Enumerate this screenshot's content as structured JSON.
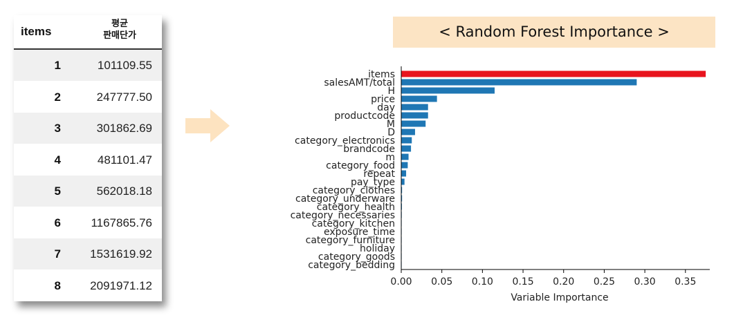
{
  "table": {
    "header_items": "items",
    "header_price_line1": "평균",
    "header_price_line2": "판매단가",
    "rows": [
      {
        "idx": "1",
        "value": "101109.55"
      },
      {
        "idx": "2",
        "value": "247777.50"
      },
      {
        "idx": "3",
        "value": "301862.69"
      },
      {
        "idx": "4",
        "value": "481101.47"
      },
      {
        "idx": "5",
        "value": "562018.18"
      },
      {
        "idx": "6",
        "value": "1167865.76"
      },
      {
        "idx": "7",
        "value": "1531619.92"
      },
      {
        "idx": "8",
        "value": "2091971.12"
      }
    ]
  },
  "banner": {
    "title": "< Random Forest Importance >"
  },
  "colors": {
    "arrow": "#fde3c0",
    "banner_bg": "#fce4c4",
    "bar": "#1f77b4",
    "highlight_bar": "#e8141e"
  },
  "chart_data": {
    "type": "bar",
    "orientation": "horizontal",
    "xlabel": "Variable Importance",
    "xlim": [
      0,
      0.38
    ],
    "xticks": [
      "0.00",
      "0.05",
      "0.10",
      "0.15",
      "0.20",
      "0.25",
      "0.30",
      "0.35"
    ],
    "xtick_values": [
      0,
      0.05,
      0.1,
      0.15,
      0.2,
      0.25,
      0.3,
      0.35
    ],
    "categories": [
      "items",
      "salesAMT/total",
      "H",
      "price",
      "day",
      "productcode",
      "M",
      "D",
      "category_electronics",
      "brandcode",
      "m",
      "category_food",
      "repeat",
      "pay_type",
      "category_clothes",
      "category_underware",
      "category_health",
      "category_necessaries",
      "category_kitchen",
      "exposure_time",
      "category_furniture",
      "holiday",
      "category_goods",
      "category_bedding"
    ],
    "values": [
      0.375,
      0.29,
      0.115,
      0.044,
      0.033,
      0.033,
      0.03,
      0.017,
      0.013,
      0.012,
      0.009,
      0.008,
      0.006,
      0.004,
      0.001,
      0.001,
      0.0008,
      0.0006,
      0.0005,
      0.0004,
      0.0003,
      0.0002,
      0.0001,
      0.0001
    ],
    "highlight": "items"
  }
}
